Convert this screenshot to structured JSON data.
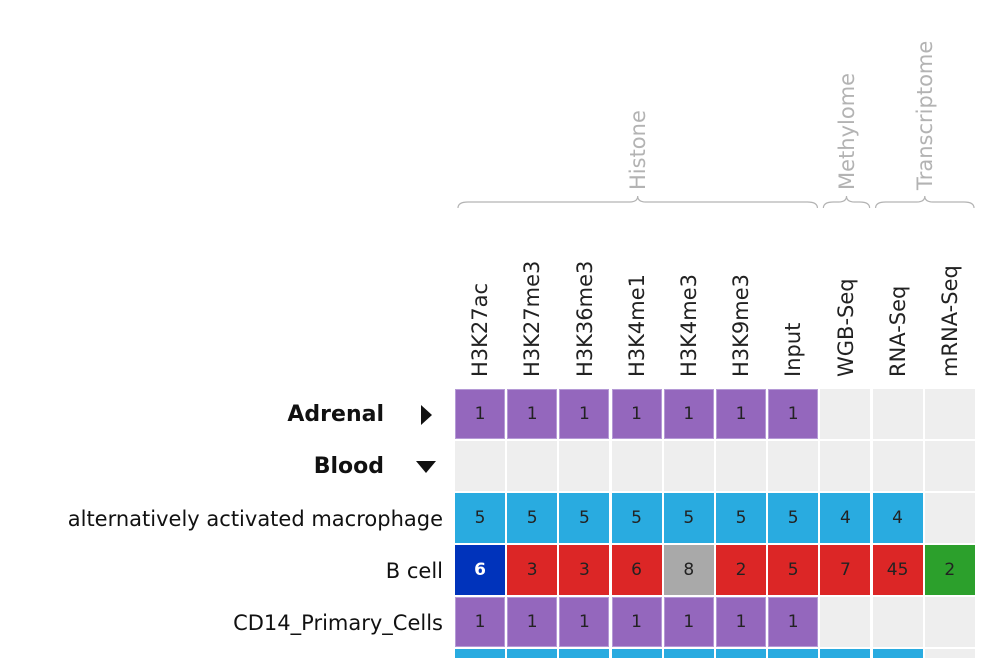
{
  "groups": [
    {
      "label": "Histone",
      "col_start": 0,
      "col_end": 6
    },
    {
      "label": "Methylome",
      "col_start": 7,
      "col_end": 7
    },
    {
      "label": "Transcriptome",
      "col_start": 8,
      "col_end": 9
    }
  ],
  "columns": [
    "H3K27ac",
    "H3K27me3",
    "H3K36me3",
    "H3K4me1",
    "H3K4me3",
    "H3K9me3",
    "Input",
    "WGB-Seq",
    "RNA-Seq",
    "mRNA-Seq"
  ],
  "colors": {
    "purple": "#9467bd",
    "purple_border": "#b59ad6",
    "blue": "#29abe0",
    "dark_blue": "#0033bb",
    "red": "#dc2626",
    "gray": "#a9a9a9",
    "green": "#2ca02c",
    "empty": "#eeeeee"
  },
  "rows": [
    {
      "label": "Adrenal",
      "type": "group",
      "expanded": false,
      "toggle_icon": "triangle-right-icon",
      "cells": [
        {
          "v": "1",
          "c": "purple"
        },
        {
          "v": "1",
          "c": "purple"
        },
        {
          "v": "1",
          "c": "purple"
        },
        {
          "v": "1",
          "c": "purple"
        },
        {
          "v": "1",
          "c": "purple"
        },
        {
          "v": "1",
          "c": "purple"
        },
        {
          "v": "1",
          "c": "purple"
        },
        {
          "v": "",
          "c": "empty"
        },
        {
          "v": "",
          "c": "empty"
        },
        {
          "v": "",
          "c": "empty"
        }
      ]
    },
    {
      "label": "Blood",
      "type": "group",
      "expanded": true,
      "toggle_icon": "triangle-down-icon",
      "cells": [
        {
          "v": "",
          "c": "empty"
        },
        {
          "v": "",
          "c": "empty"
        },
        {
          "v": "",
          "c": "empty"
        },
        {
          "v": "",
          "c": "empty"
        },
        {
          "v": "",
          "c": "empty"
        },
        {
          "v": "",
          "c": "empty"
        },
        {
          "v": "",
          "c": "empty"
        },
        {
          "v": "",
          "c": "empty"
        },
        {
          "v": "",
          "c": "empty"
        },
        {
          "v": "",
          "c": "empty"
        }
      ]
    },
    {
      "label": "alternatively activated macrophage",
      "type": "item",
      "cells": [
        {
          "v": "5",
          "c": "blue"
        },
        {
          "v": "5",
          "c": "blue"
        },
        {
          "v": "5",
          "c": "blue"
        },
        {
          "v": "5",
          "c": "blue"
        },
        {
          "v": "5",
          "c": "blue"
        },
        {
          "v": "5",
          "c": "blue"
        },
        {
          "v": "5",
          "c": "blue"
        },
        {
          "v": "4",
          "c": "blue"
        },
        {
          "v": "4",
          "c": "blue"
        },
        {
          "v": "",
          "c": "empty"
        }
      ]
    },
    {
      "label": "B cell",
      "type": "item",
      "cells": [
        {
          "v": "6",
          "c": "dark_blue",
          "bold": true
        },
        {
          "v": "3",
          "c": "red"
        },
        {
          "v": "3",
          "c": "red"
        },
        {
          "v": "6",
          "c": "red"
        },
        {
          "v": "8",
          "c": "gray"
        },
        {
          "v": "2",
          "c": "red"
        },
        {
          "v": "5",
          "c": "red"
        },
        {
          "v": "7",
          "c": "red"
        },
        {
          "v": "45",
          "c": "red"
        },
        {
          "v": "2",
          "c": "green"
        }
      ]
    },
    {
      "label": "CD14_Primary_Cells",
      "type": "item",
      "cells": [
        {
          "v": "1",
          "c": "purple"
        },
        {
          "v": "1",
          "c": "purple"
        },
        {
          "v": "1",
          "c": "purple"
        },
        {
          "v": "1",
          "c": "purple"
        },
        {
          "v": "1",
          "c": "purple"
        },
        {
          "v": "1",
          "c": "purple"
        },
        {
          "v": "1",
          "c": "purple"
        },
        {
          "v": "",
          "c": "empty"
        },
        {
          "v": "",
          "c": "empty"
        },
        {
          "v": "",
          "c": "empty"
        }
      ]
    },
    {
      "label": "",
      "type": "item",
      "cells": [
        {
          "v": "",
          "c": "blue"
        },
        {
          "v": "",
          "c": "blue"
        },
        {
          "v": "",
          "c": "blue"
        },
        {
          "v": "",
          "c": "blue"
        },
        {
          "v": "",
          "c": "blue"
        },
        {
          "v": "",
          "c": "blue"
        },
        {
          "v": "",
          "c": "blue"
        },
        {
          "v": "",
          "c": "blue"
        },
        {
          "v": "",
          "c": "blue"
        },
        {
          "v": "",
          "c": "empty"
        }
      ]
    }
  ]
}
